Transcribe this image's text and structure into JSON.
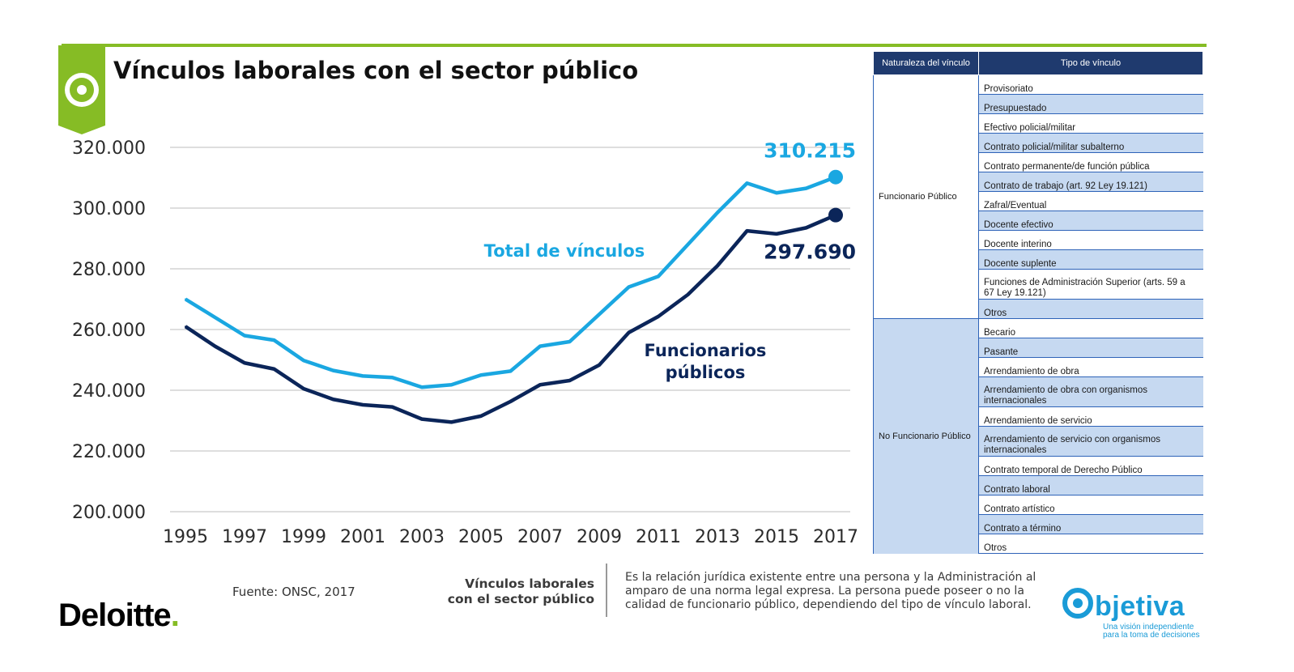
{
  "page": {
    "title": "Vínculos laborales con el sector público"
  },
  "chart_data": {
    "type": "line",
    "x": [
      1995,
      1996,
      1997,
      1998,
      1999,
      2000,
      2001,
      2002,
      2003,
      2004,
      2005,
      2006,
      2007,
      2008,
      2009,
      2010,
      2011,
      2012,
      2013,
      2014,
      2015,
      2016,
      2017
    ],
    "xticks": [
      "1995",
      "1997",
      "1999",
      "2001",
      "2003",
      "2005",
      "2007",
      "2009",
      "2011",
      "2013",
      "2015",
      "2017"
    ],
    "ylim": [
      200000,
      320000
    ],
    "yticks": [
      "200.000",
      "220.000",
      "240.000",
      "260.000",
      "280.000",
      "300.000",
      "320.000"
    ],
    "grid": true,
    "series": [
      {
        "name": "Total de vínculos",
        "color": "#1aa7e1",
        "values": [
          270000,
          264000,
          258000,
          256500,
          249800,
          246500,
          244700,
          244200,
          241000,
          241800,
          245000,
          246300,
          254500,
          256000,
          265000,
          274000,
          277500,
          288000,
          298500,
          308200,
          305000,
          306500,
          310215
        ],
        "end_label": "310.215"
      },
      {
        "name": "Funcionarios públicos",
        "color": "#0b2559",
        "values": [
          261000,
          254500,
          249000,
          247000,
          240500,
          237000,
          235200,
          234500,
          230500,
          229500,
          231500,
          236300,
          241800,
          243200,
          248300,
          259000,
          264300,
          271500,
          281000,
          292500,
          291500,
          293500,
          297690
        ],
        "end_label": "297.690"
      }
    ],
    "annotations": {
      "total_label": "Total de vínculos",
      "funcionarios_label_line1": "Funcionarios",
      "funcionarios_label_line2": "públicos"
    }
  },
  "table": {
    "headers": [
      "Naturaleza del vínculo",
      "Tipo de vínculo"
    ],
    "groups": [
      {
        "name": "Funcionario Público",
        "items": [
          "Provisoriato",
          "Presupuestado",
          "Efectivo policial/militar",
          "Contrato policial/militar subalterno",
          "Contrato permanente/de función pública",
          "Contrato de trabajo (art. 92 Ley 19.121)",
          "Zafral/Eventual",
          "Docente efectivo",
          "Docente interino",
          "Docente suplente",
          "Funciones de Administración Superior (arts. 59 a 67 Ley 19.121)",
          "Otros"
        ]
      },
      {
        "name": "No Funcionario Público",
        "items": [
          "Becario",
          "Pasante",
          "Arrendamiento de obra",
          "Arrendamiento de obra con organismos internacionales",
          "Arrendamiento de servicio",
          "Arrendamiento de servicio con organismos internacionales",
          "Contrato temporal de Derecho Público",
          "Contrato laboral",
          "Contrato artístico",
          "Contrato a término",
          "Otros"
        ]
      }
    ]
  },
  "footer": {
    "source": "Fuente: ONSC, 2017",
    "definition_title_line1": "Vínculos laborales",
    "definition_title_line2": "con el sector público",
    "definition_text": "Es la relación jurídica existente entre una persona y la Administración al amparo de una norma legal expresa. La persona puede poseer o no la calidad de funcionario público, dependiendo del tipo de vínculo laboral.",
    "deloitte_brand": "Deloitte",
    "deloitte_dot": ".",
    "objetiva_brand": "bjetiva",
    "objetiva_tagline_line1": "Una visión independiente",
    "objetiva_tagline_line2": "para la toma de decisiones"
  },
  "colors": {
    "accent_green": "#86bc25",
    "header_navy": "#1f3a6e",
    "row_blue": "#c6d9f1",
    "objetiva_blue": "#1a9bd7"
  }
}
